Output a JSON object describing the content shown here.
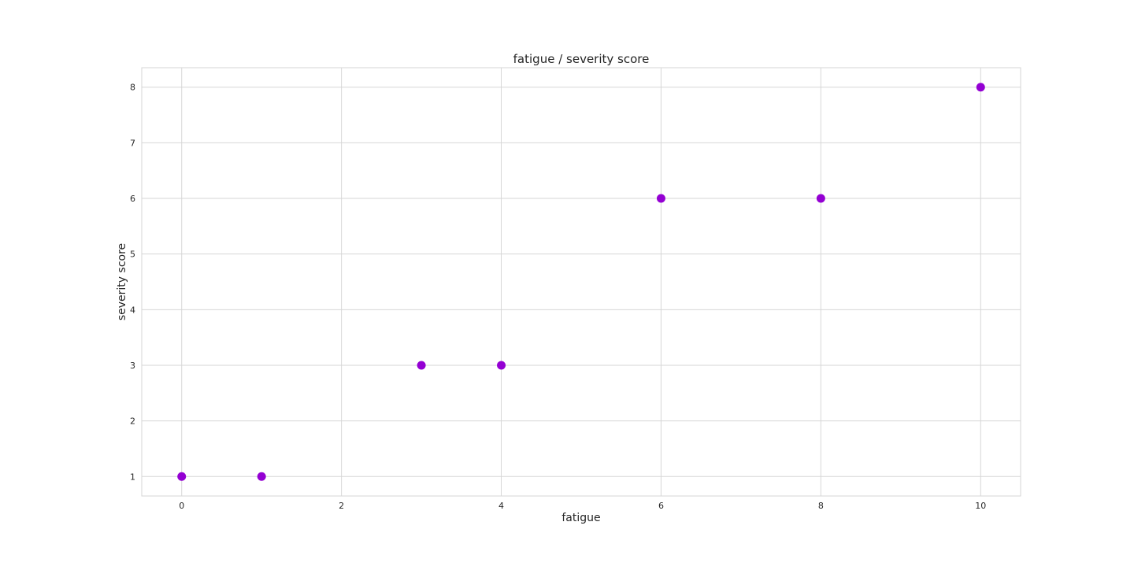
{
  "chart_data": {
    "type": "scatter",
    "title": "fatigue / severity score",
    "xlabel": "fatigue",
    "ylabel": "severity score",
    "x": [
      0,
      1,
      3,
      4,
      6,
      8,
      10
    ],
    "y": [
      1,
      1,
      3,
      3,
      6,
      6,
      8
    ],
    "xlim": [
      -0.5,
      10.5
    ],
    "ylim": [
      0.65,
      8.35
    ],
    "x_ticks": [
      0,
      2,
      4,
      6,
      8,
      10
    ],
    "y_ticks": [
      1,
      2,
      3,
      4,
      5,
      6,
      7,
      8
    ],
    "x_tick_labels": [
      "0",
      "2",
      "4",
      "6",
      "8",
      "10"
    ],
    "y_tick_labels": [
      "1",
      "2",
      "3",
      "4",
      "5",
      "6",
      "7",
      "8"
    ],
    "grid": true,
    "marker_color": "#9400d3"
  }
}
